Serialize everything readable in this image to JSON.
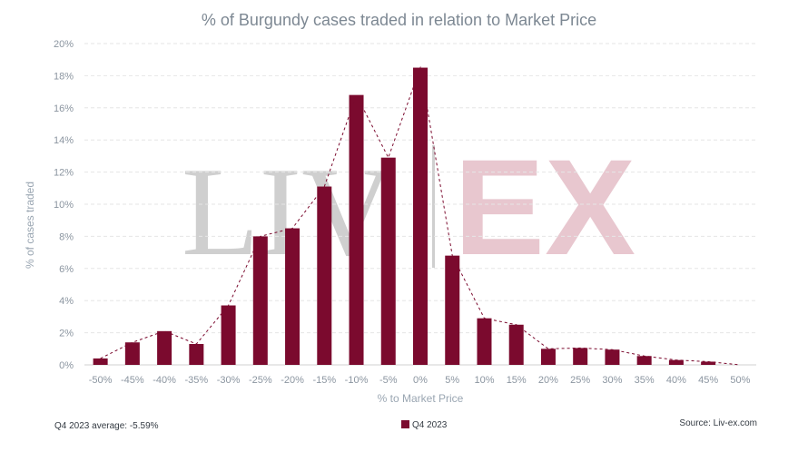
{
  "chart_data": {
    "type": "bar",
    "title": "% of Burgundy cases traded in relation to Market Price",
    "xlabel": "% to Market Price",
    "ylabel": "% of cases traded",
    "categories": [
      "-50%",
      "-45%",
      "-40%",
      "-35%",
      "-30%",
      "-25%",
      "-20%",
      "-15%",
      "-10%",
      "-5%",
      "0%",
      "5%",
      "10%",
      "15%",
      "20%",
      "25%",
      "30%",
      "35%",
      "40%",
      "45%",
      "50%"
    ],
    "series": [
      {
        "name": "Q4 2023",
        "color": "#7b0a2e",
        "values": [
          0.4,
          1.4,
          2.1,
          1.3,
          3.7,
          8.0,
          8.5,
          11.1,
          16.8,
          12.9,
          18.5,
          6.8,
          2.9,
          2.5,
          1.0,
          1.05,
          0.95,
          0.55,
          0.3,
          0.2,
          0.0
        ]
      }
    ],
    "y_ticks": [
      "0%",
      "2%",
      "4%",
      "6%",
      "8%",
      "10%",
      "12%",
      "14%",
      "16%",
      "18%",
      "20%"
    ],
    "ylim": [
      0,
      20
    ],
    "grid": true,
    "trendline": "dashed",
    "legend_position": "bottom-center"
  },
  "footer": {
    "average_note": "Q4 2023 average: -5.59%",
    "source": "Source: Liv-ex.com"
  },
  "watermark": {
    "left_text": "LIV",
    "right_text": "EX",
    "left_color": "#cfcfcf",
    "right_color": "#e8c7cf"
  }
}
